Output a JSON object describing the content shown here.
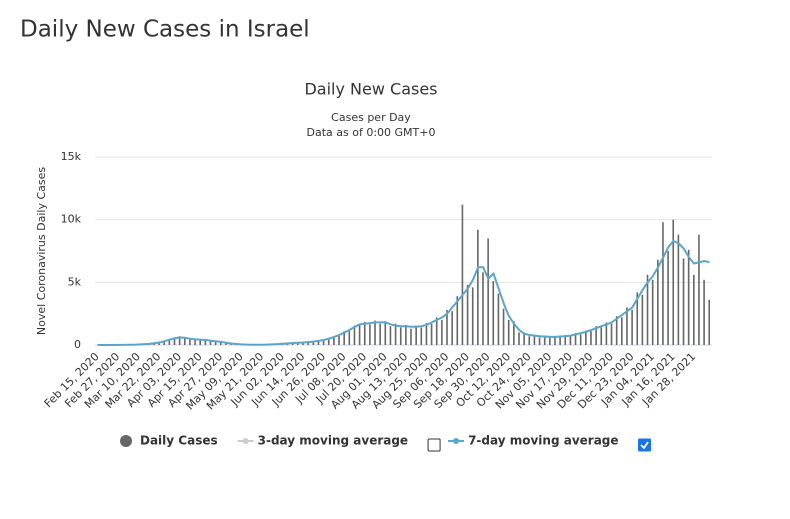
{
  "page_title": "Daily New Cases in Israel",
  "chart_data": {
    "type": "bar_line",
    "title": "Daily New Cases",
    "subtitle": "Cases per Day",
    "note": "Data as of 0:00 GMT+0",
    "ylabel": "Novel Coronavirus Daily Cases",
    "ylim": [
      0,
      15000
    ],
    "yticks": [
      0,
      {
        "value": 5000,
        "label": "5k"
      },
      {
        "value": 10000,
        "label": "10k"
      },
      {
        "value": 15000,
        "label": "15k"
      }
    ],
    "grid": true,
    "categories": [
      "Feb 15, 2020",
      null,
      null,
      null,
      "Feb 27, 2020",
      null,
      null,
      null,
      "Mar 10, 2020",
      null,
      null,
      null,
      "Mar 22, 2020",
      null,
      null,
      null,
      "Apr 03, 2020",
      null,
      null,
      null,
      "Apr 15, 2020",
      null,
      null,
      null,
      "Apr 27, 2020",
      null,
      null,
      null,
      "May 09, 2020",
      null,
      null,
      null,
      "May 21, 2020",
      null,
      null,
      null,
      "Jun 02, 2020",
      null,
      null,
      null,
      "Jun 14, 2020",
      null,
      null,
      null,
      "Jun 26, 2020",
      null,
      null,
      null,
      "Jul 08, 2020",
      null,
      null,
      null,
      "Jul 20, 2020",
      null,
      null,
      null,
      "Aug 01, 2020",
      null,
      null,
      null,
      "Aug 13, 2020",
      null,
      null,
      null,
      "Aug 25, 2020",
      null,
      null,
      null,
      "Sep 06, 2020",
      null,
      null,
      null,
      "Sep 18, 2020",
      null,
      null,
      null,
      "Sep 30, 2020",
      null,
      null,
      null,
      "Oct 12, 2020",
      null,
      null,
      null,
      "Oct 24, 2020",
      null,
      null,
      null,
      "Nov 05, 2020",
      null,
      null,
      null,
      "Nov 17, 2020",
      null,
      null,
      null,
      "Nov 29, 2020",
      null,
      null,
      null,
      "Dec 11, 2020",
      null,
      null,
      null,
      "Dec 23, 2020",
      null,
      null,
      null,
      "Jan 04, 2021",
      null,
      null,
      null,
      "Jan 16, 2021",
      null,
      null,
      null,
      "Jan 28, 2021",
      null,
      null,
      null
    ],
    "series": [
      {
        "name": "Daily Cases",
        "type": "bar",
        "color": "#666666",
        "checked": null,
        "values": [
          0,
          0,
          0,
          0,
          5,
          10,
          20,
          30,
          50,
          70,
          100,
          160,
          230,
          280,
          480,
          600,
          700,
          520,
          560,
          400,
          480,
          350,
          390,
          280,
          220,
          200,
          100,
          90,
          40,
          30,
          15,
          25,
          20,
          25,
          60,
          60,
          110,
          120,
          180,
          170,
          220,
          210,
          300,
          310,
          450,
          460,
          700,
          750,
          1100,
          1100,
          1550,
          1600,
          1850,
          1650,
          1950,
          1700,
          1900,
          1500,
          1700,
          1400,
          1600,
          1300,
          1550,
          1400,
          1750,
          1700,
          2200,
          2000,
          2800,
          2700,
          3900,
          11200,
          4800,
          4600,
          9200,
          5800,
          8500,
          5100,
          4100,
          2900,
          2000,
          1900,
          1000,
          1000,
          700,
          800,
          600,
          750,
          600,
          700,
          600,
          800,
          700,
          950,
          850,
          1150,
          1100,
          1500,
          1400,
          1800,
          1700,
          2300,
          2200,
          3000,
          2800,
          4200,
          4000,
          5600,
          5200,
          6800,
          9800,
          7500,
          10000,
          8800,
          6900,
          7600,
          5600,
          8800,
          5200,
          3600
        ]
      },
      {
        "name": "7-day moving average",
        "type": "line",
        "color": "#5aa6c8",
        "checked": true,
        "values": [
          0,
          0,
          0,
          0,
          5,
          10,
          15,
          25,
          40,
          60,
          90,
          140,
          200,
          300,
          420,
          540,
          600,
          580,
          500,
          450,
          430,
          400,
          350,
          300,
          250,
          180,
          120,
          80,
          50,
          30,
          20,
          20,
          20,
          30,
          50,
          70,
          100,
          130,
          160,
          180,
          200,
          230,
          270,
          330,
          400,
          500,
          650,
          800,
          1000,
          1200,
          1450,
          1650,
          1700,
          1750,
          1800,
          1800,
          1800,
          1650,
          1550,
          1500,
          1500,
          1450,
          1450,
          1500,
          1600,
          1800,
          2000,
          2200,
          2500,
          3000,
          3500,
          4000,
          4500,
          5200,
          6200,
          6200,
          5300,
          5700,
          4500,
          3300,
          2300,
          1700,
          1200,
          900,
          800,
          750,
          700,
          680,
          650,
          650,
          680,
          700,
          750,
          850,
          950,
          1050,
          1200,
          1350,
          1500,
          1650,
          1800,
          2100,
          2400,
          2700,
          3000,
          3700,
          4400,
          5000,
          5500,
          6200,
          7000,
          7800,
          8300,
          8100,
          7700,
          7000,
          6500,
          6600,
          6700,
          6600
        ]
      }
    ],
    "hidden_series": [
      {
        "name": "3-day moving average",
        "color": "#cccccc",
        "checked": false
      }
    ]
  }
}
